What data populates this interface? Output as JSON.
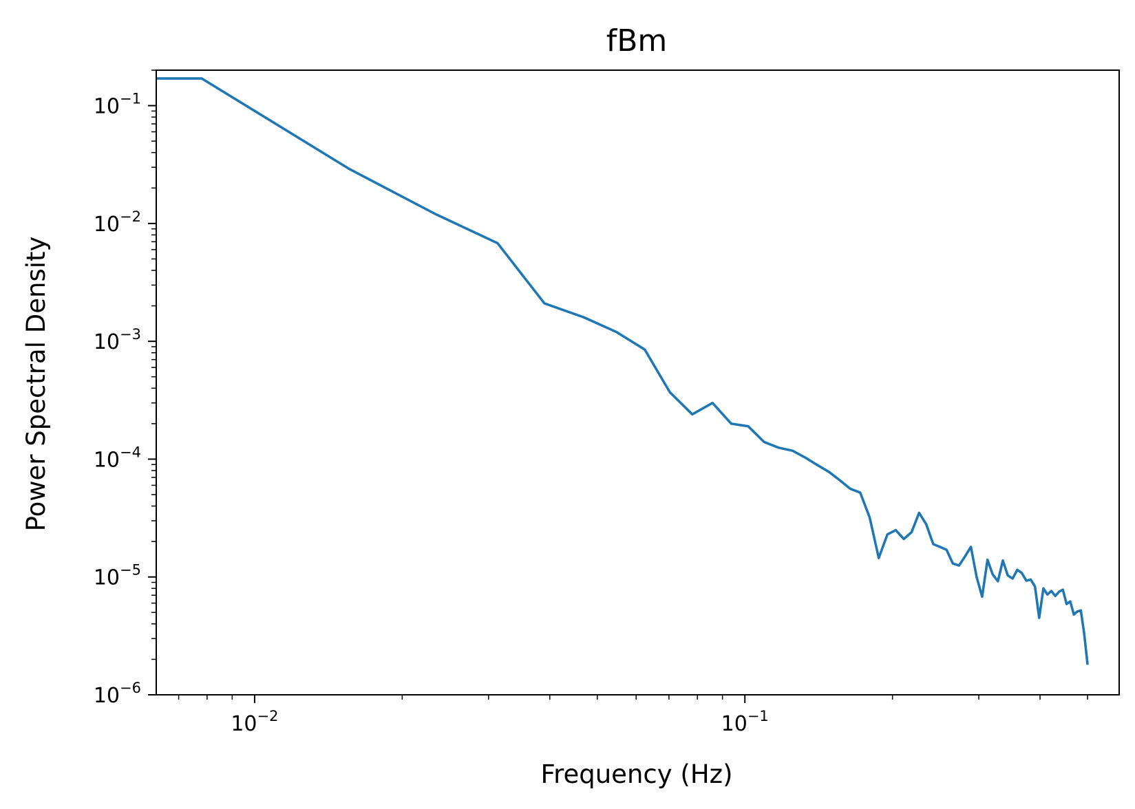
{
  "chart_data": {
    "type": "line",
    "title": "fBm",
    "xlabel": "Frequency (Hz)",
    "ylabel": "Power Spectral Density",
    "xscale": "log",
    "yscale": "log",
    "xlim": [
      0.0063,
      0.58
    ],
    "ylim": [
      1e-06,
      0.2
    ],
    "grid": false,
    "legend": "none",
    "line_color": "#1f77b4",
    "x_ticks": [
      {
        "value": 0.01,
        "base": "10",
        "exp": "−2"
      },
      {
        "value": 0.1,
        "base": "10",
        "exp": "−1"
      }
    ],
    "y_ticks": [
      {
        "value": 0.1,
        "base": "10",
        "exp": "−1"
      },
      {
        "value": 0.01,
        "base": "10",
        "exp": "−2"
      },
      {
        "value": 0.001,
        "base": "10",
        "exp": "−3"
      },
      {
        "value": 0.0001,
        "base": "10",
        "exp": "−4"
      },
      {
        "value": 1e-05,
        "base": "10",
        "exp": "−5"
      },
      {
        "value": 1e-06,
        "base": "10",
        "exp": "−6"
      }
    ],
    "series": [
      {
        "x": [
          0.0063,
          0.0078,
          0.0156,
          0.0234,
          0.0313,
          0.039,
          0.0469,
          0.0547,
          0.0625,
          0.0703,
          0.0781,
          0.0859,
          0.0938,
          0.1016,
          0.1094,
          0.1172,
          0.125,
          0.1328,
          0.1406,
          0.1484,
          0.1563,
          0.1641,
          0.1719,
          0.1797,
          0.1875,
          0.1953,
          0.2031,
          0.2109,
          0.2188,
          0.2266,
          0.2344,
          0.2422,
          0.25,
          0.2578,
          0.2656,
          0.2734,
          0.2813,
          0.2891,
          0.2969,
          0.3047,
          0.3125,
          0.3203,
          0.3281,
          0.3359,
          0.3438,
          0.3516,
          0.3594,
          0.3672,
          0.375,
          0.3828,
          0.3906,
          0.3984,
          0.4063,
          0.4141,
          0.4219,
          0.4297,
          0.4375,
          0.4453,
          0.4531,
          0.4609,
          0.4688,
          0.4766,
          0.4844,
          0.4922,
          0.5
        ],
        "y": [
          0.17,
          0.17,
          0.029,
          0.012,
          0.0068,
          0.0021,
          0.0016,
          0.0012,
          0.00085,
          0.00037,
          0.00024,
          0.0003,
          0.0002,
          0.00019,
          0.00014,
          0.000125,
          0.000118,
          0.000103,
          8.9e-05,
          7.8e-05,
          6.6e-05,
          5.6e-05,
          5.2e-05,
          3.2e-05,
          1.45e-05,
          2.3e-05,
          2.5e-05,
          2.1e-05,
          2.4e-05,
          3.5e-05,
          2.8e-05,
          1.9e-05,
          1.8e-05,
          1.7e-05,
          1.3e-05,
          1.25e-05,
          1.5e-05,
          1.8e-05,
          1e-05,
          6.8e-06,
          1.4e-05,
          1.05e-05,
          9.2e-06,
          1.38e-05,
          1.03e-05,
          9.7e-06,
          1.15e-05,
          1.08e-05,
          9.3e-06,
          9.5e-06,
          8.3e-06,
          4.5e-06,
          8e-06,
          7.1e-06,
          7.6e-06,
          6.9e-06,
          7.5e-06,
          7.8e-06,
          5.9e-06,
          6.2e-06,
          4.8e-06,
          5.1e-06,
          5.2e-06,
          3.3e-06,
          1.8e-06
        ]
      }
    ]
  }
}
